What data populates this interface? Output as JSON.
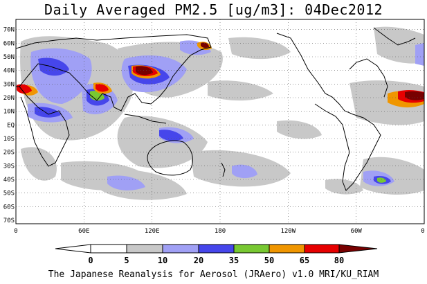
{
  "title": "Daily Averaged PM2.5 [ug/m3]: 04Dec2012",
  "footer": "The Japanese Reanalysis for Aerosol (JRAero) v1.0 MRI/KU_RIAM",
  "map": {
    "lon_range": [
      0,
      360
    ],
    "lat_range": [
      -75,
      75
    ],
    "lat_labels": [
      "70N",
      "60N",
      "50N",
      "40N",
      "30N",
      "20N",
      "10N",
      "EQ",
      "10S",
      "20S",
      "30S",
      "40S",
      "50S",
      "60S",
      "70S"
    ],
    "lon_labels": [
      "0",
      "60E",
      "120E",
      "180",
      "120W",
      "60W",
      "0"
    ],
    "grid": true
  },
  "colorbar": {
    "labels": [
      "0",
      "5",
      "10",
      "20",
      "35",
      "50",
      "65",
      "80"
    ],
    "colors": [
      "#ffffff",
      "#c8c8c8",
      "#a0a0f5",
      "#4646eb",
      "#78c832",
      "#f09600",
      "#e60000",
      "#780000"
    ]
  }
}
